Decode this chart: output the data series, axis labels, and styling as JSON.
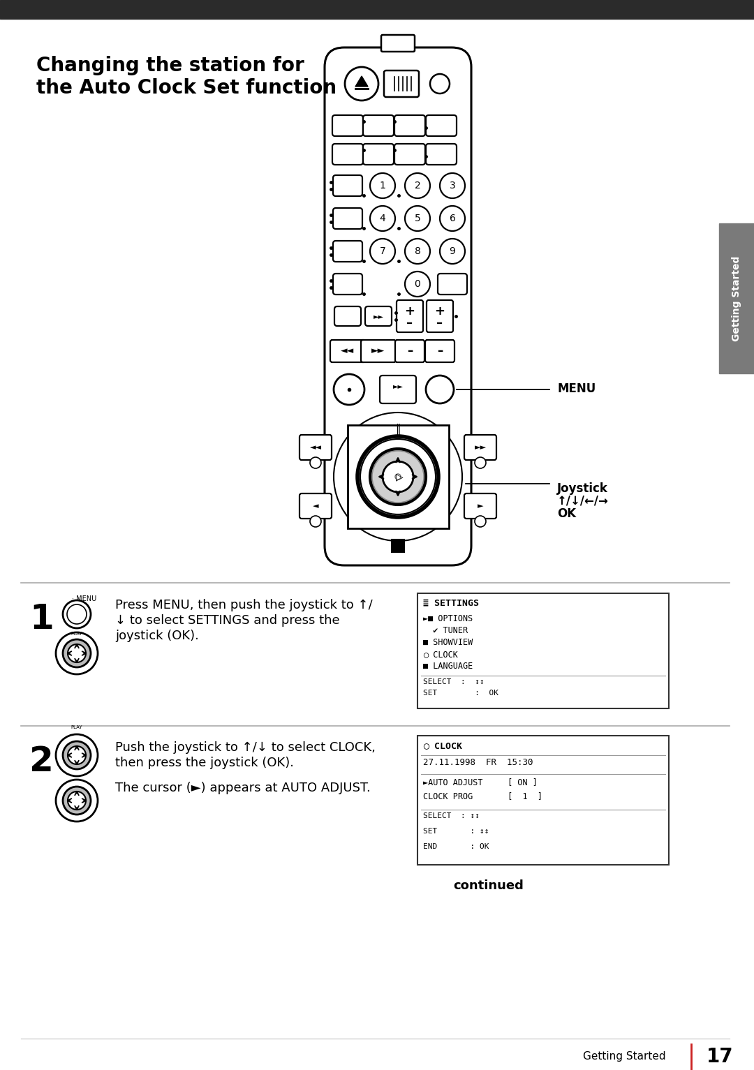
{
  "title_line1": "Changing the station for",
  "title_line2": "the Auto Clock Set function",
  "bg_color": "#ffffff",
  "top_bar_color": "#2b2b2b",
  "sidebar_color": "#7a7a7a",
  "sidebar_text": "Getting Started",
  "footer_label": "Getting Started",
  "page_number": "17",
  "step1_number": "1",
  "step1_text_line1": "Press MENU, then push the joystick to ↑/",
  "step1_text_line2": "↓ to select SETTINGS and press the",
  "step1_text_line3": "joystick (OK).",
  "step2_number": "2",
  "step2_text_line1": "Push the joystick to ↑/↓ to select CLOCK,",
  "step2_text_line2": "then press the joystick (OK).",
  "step2_text_line3": "The cursor (►) appears at AUTO ADJUST.",
  "menu_label": "MENU",
  "joystick_label_line1": "Joystick",
  "joystick_label_line2": "↑/↓/←/→",
  "joystick_label_line3": "OK",
  "settings_title": "SETTINGS",
  "settings_lines": [
    "► OPTIONS",
    "TUNER",
    "SHOWVIEW",
    "CLOCK",
    "LANGUAGE",
    "SELECT  :  ↕↕",
    "SET        :  OK"
  ],
  "clock_title": "CLOCK",
  "clock_date": "27.11.1998  FR  15:30",
  "clock_lines": [
    "►AUTO ADJUST     [ ON ]",
    "CLOCK PROG       [  1  ]"
  ],
  "clock_footer_lines": [
    "SELECT  : ↕↕",
    "SET       : ↕↕",
    "END       : OK"
  ],
  "continued_text": "continued",
  "divider_color": "#aaaaaa",
  "box_border_color": "#333333",
  "red_line_color": "#cc2222"
}
